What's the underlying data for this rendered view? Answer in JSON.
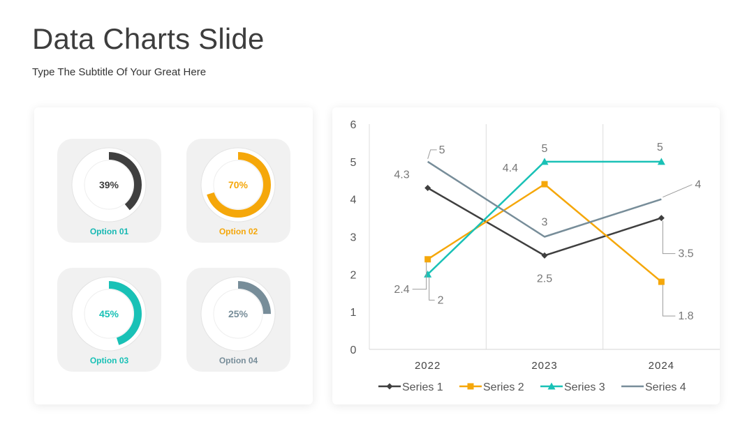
{
  "slide": {
    "title": "Data Charts Slide",
    "subtitle": "Type The Subtitle Of Your Great Here"
  },
  "donuts": [
    {
      "label": "Option 01",
      "percent_text": "39%",
      "value": 39,
      "color": "#3f3f3f",
      "label_color": "#17b8b3",
      "percent_color": "#3d3d3d"
    },
    {
      "label": "Option 02",
      "percent_text": "70%",
      "value": 70,
      "color": "#f5a70a",
      "label_color": "#f5a70a",
      "percent_color": "#f5a70a"
    },
    {
      "label": "Option 03",
      "percent_text": "45%",
      "value": 45,
      "color": "#19c1b6",
      "label_color": "#19c1b6",
      "percent_color": "#19c1b6"
    },
    {
      "label": "Option 04",
      "percent_text": "25%",
      "value": 25,
      "color": "#778d99",
      "label_color": "#778d99",
      "percent_color": "#778d99"
    }
  ],
  "chart_data": {
    "type": "line",
    "categories": [
      "2022",
      "2023",
      "2024"
    ],
    "ylim": [
      0,
      6
    ],
    "yticks": [
      "0",
      "1",
      "2",
      "3",
      "4",
      "5",
      "6"
    ],
    "grid": "vertical",
    "legend": "bottom",
    "series": [
      {
        "name": "Series 1",
        "values": [
          4.3,
          2.5,
          3.5
        ],
        "labels": [
          "4.3",
          "2.5",
          "3.5"
        ],
        "color": "#3f3f3f",
        "marker": "diamond"
      },
      {
        "name": "Series 2",
        "values": [
          2.4,
          4.4,
          1.8
        ],
        "labels": [
          "2.4",
          "4.4",
          "1.8"
        ],
        "color": "#f5a70a",
        "marker": "square"
      },
      {
        "name": "Series 3",
        "values": [
          2,
          5,
          5
        ],
        "labels": [
          "2",
          "5",
          "5"
        ],
        "color": "#19c1b6",
        "marker": "triangle"
      },
      {
        "name": "Series 4",
        "values": [
          5,
          3,
          4
        ],
        "labels": [
          "5",
          "3",
          "4"
        ],
        "color": "#778d99",
        "marker": "none"
      }
    ]
  }
}
